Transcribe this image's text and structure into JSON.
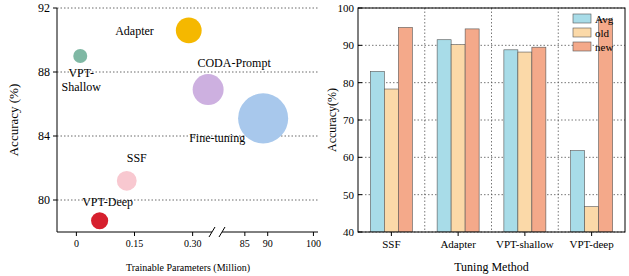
{
  "chart_data": [
    {
      "type": "scatter",
      "x_label": "Trainable Parameters (Million)",
      "y_label": "Accuracy (%)",
      "labels": [
        "Adapter",
        "VPT-\nShallow",
        "CODA-Prompt",
        "Fine-tuning",
        "SSF",
        "VPT-Deep"
      ],
      "x": [
        0.29,
        0.01,
        0.34,
        89,
        0.13,
        0.06
      ],
      "values": [
        90.6,
        89.0,
        86.9,
        85.1,
        81.2,
        78.7
      ],
      "sizes": [
        3.4,
        1,
        4.9,
        12.8,
        2,
        1.5
      ],
      "colors": [
        "#f5b800",
        "#7fb8a4",
        "#cdb0e0",
        "#a8c8ec",
        "#f8c8d0",
        "#d6202e"
      ],
      "xlim": [
        -0.05,
        101
      ],
      "x_break": [
        0.35,
        80
      ],
      "xticks": [
        0,
        0.15,
        {
          "value": 0.3,
          "label": "0.30"
        },
        85,
        90,
        100
      ],
      "ylim": [
        78,
        92
      ],
      "yticks": [
        80,
        84,
        88,
        92
      ],
      "grid": true
    },
    {
      "type": "bar",
      "x_label": "Tuning Method",
      "y_label": "Accuracy(%)",
      "categories": [
        "SSF",
        "Adapter",
        "VPT-shallow",
        "VPT-deep"
      ],
      "series": [
        {
          "name": "Avg",
          "color": "#a8dce8",
          "values": [
            83.0,
            91.5,
            88.8,
            61.8
          ]
        },
        {
          "name": "old",
          "color": "#fbd9a8",
          "values": [
            78.3,
            90.2,
            88.2,
            46.8
          ]
        },
        {
          "name": "new",
          "color": "#f4a98a",
          "values": [
            94.8,
            94.4,
            89.5,
            96.9
          ]
        }
      ],
      "ylim": [
        40,
        100
      ],
      "yticks": [
        40,
        50,
        60,
        70,
        80,
        90,
        100
      ],
      "grid": true,
      "legend": "top-right"
    }
  ]
}
